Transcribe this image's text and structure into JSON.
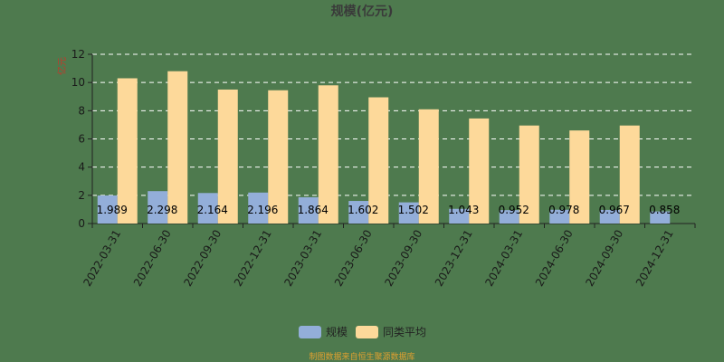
{
  "chart_data": {
    "type": "bar",
    "title": "规模(亿元)",
    "ylabel": "亿元",
    "xlabel": "",
    "ylim": [
      0,
      12
    ],
    "yticks": [
      0,
      2,
      4,
      6,
      8,
      10,
      12
    ],
    "grid": true,
    "legend_position": "bottom",
    "categories": [
      "2022-03-31",
      "2022-06-30",
      "2022-09-30",
      "2022-12-31",
      "2023-03-31",
      "2023-06-30",
      "2023-09-30",
      "2023-12-31",
      "2024-03-31",
      "2024-06-30",
      "2024-09-30",
      "2024-12-31"
    ],
    "series": [
      {
        "name": "规模",
        "color": "#93aed9",
        "values": [
          1.989,
          2.298,
          2.164,
          2.196,
          1.864,
          1.602,
          1.502,
          1.043,
          0.952,
          0.978,
          0.967,
          0.858
        ],
        "labels": [
          "1.989",
          "2.298",
          "2.164",
          "2.196",
          "1.864",
          "1.602",
          "1.502",
          "1.043",
          "0.952",
          "0.978",
          "0.967",
          "0.858"
        ]
      },
      {
        "name": "同类平均",
        "color": "#fdd99a",
        "values": [
          10.3,
          10.8,
          9.5,
          9.45,
          9.8,
          8.95,
          8.1,
          7.45,
          6.95,
          6.6,
          6.95,
          null
        ]
      }
    ]
  },
  "footer": "制图数据来自恒生聚源数据库"
}
